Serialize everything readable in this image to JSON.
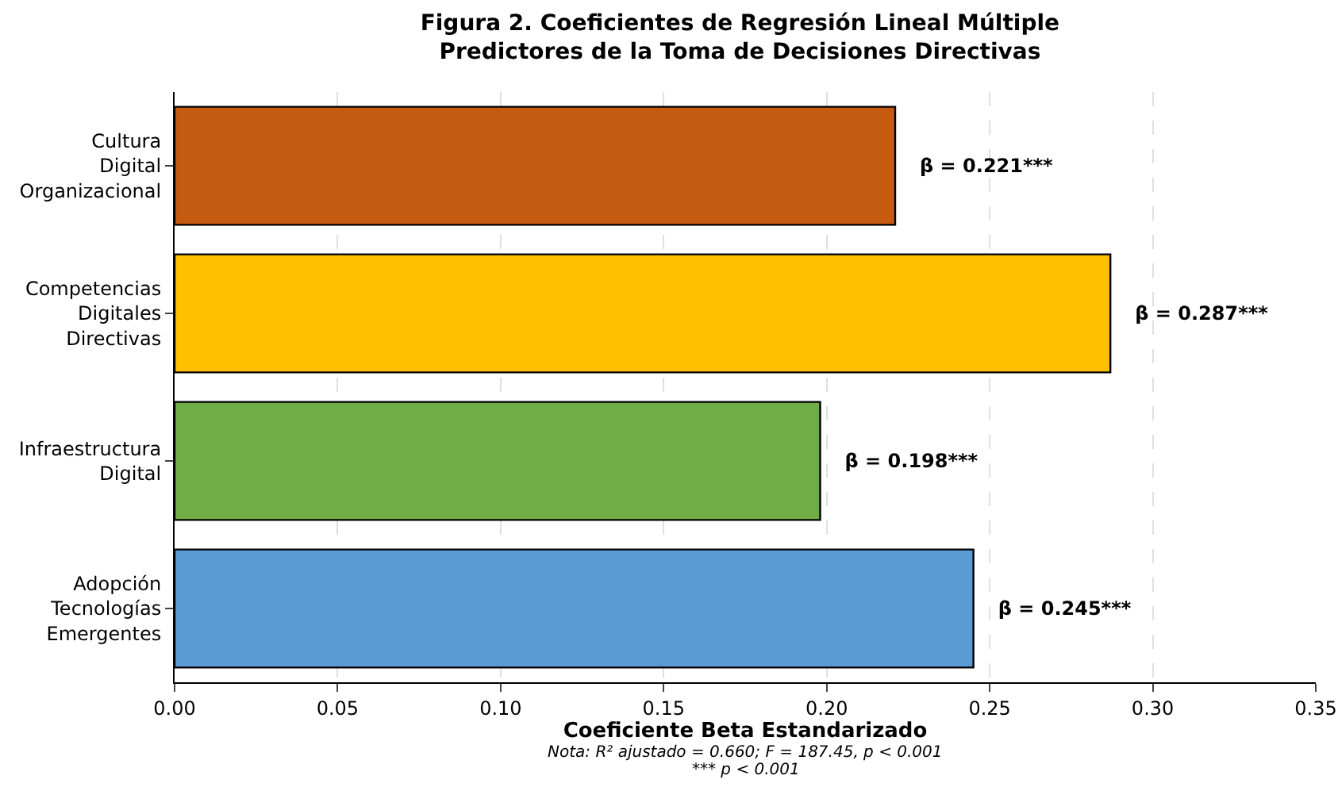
{
  "chart_data": {
    "type": "bar",
    "orientation": "horizontal",
    "title": "Figura 2. Coeficientes de Regresión Lineal Múltiple\nPredictores de la Toma de Decisiones Directivas",
    "xlabel": "Coeficiente Beta Estandarizado",
    "categories": [
      "Cultura\nDigital\nOrganizacional",
      "Competencias\nDigitales\nDirectivas",
      "Infraestructura\nDigital",
      "Adopción\nTecnologías\nEmergentes"
    ],
    "values": [
      0.221,
      0.287,
      0.198,
      0.245
    ],
    "colors": [
      "#c55a11",
      "#ffc000",
      "#70ad47",
      "#5b9bd5"
    ],
    "value_labels": [
      "β = 0.221***",
      "β = 0.287***",
      "β = 0.198***",
      "β = 0.245***"
    ],
    "xlim": [
      0,
      0.35
    ],
    "xticks": [
      {
        "value": 0,
        "label": "0.00"
      },
      {
        "value": 0.05,
        "label": "0.05"
      },
      {
        "value": 0.1,
        "label": "0.10"
      },
      {
        "value": 0.15,
        "label": "0.15"
      },
      {
        "value": 0.2,
        "label": "0.20"
      },
      {
        "value": 0.25,
        "label": "0.25"
      },
      {
        "value": 0.3,
        "label": "0.30"
      },
      {
        "value": 0.35,
        "label": "0.35"
      }
    ],
    "grid": "x",
    "annotations": [
      "Nota: R² ajustado = 0.660; F = 187.45, p < 0.001",
      "*** p < 0.001"
    ]
  }
}
